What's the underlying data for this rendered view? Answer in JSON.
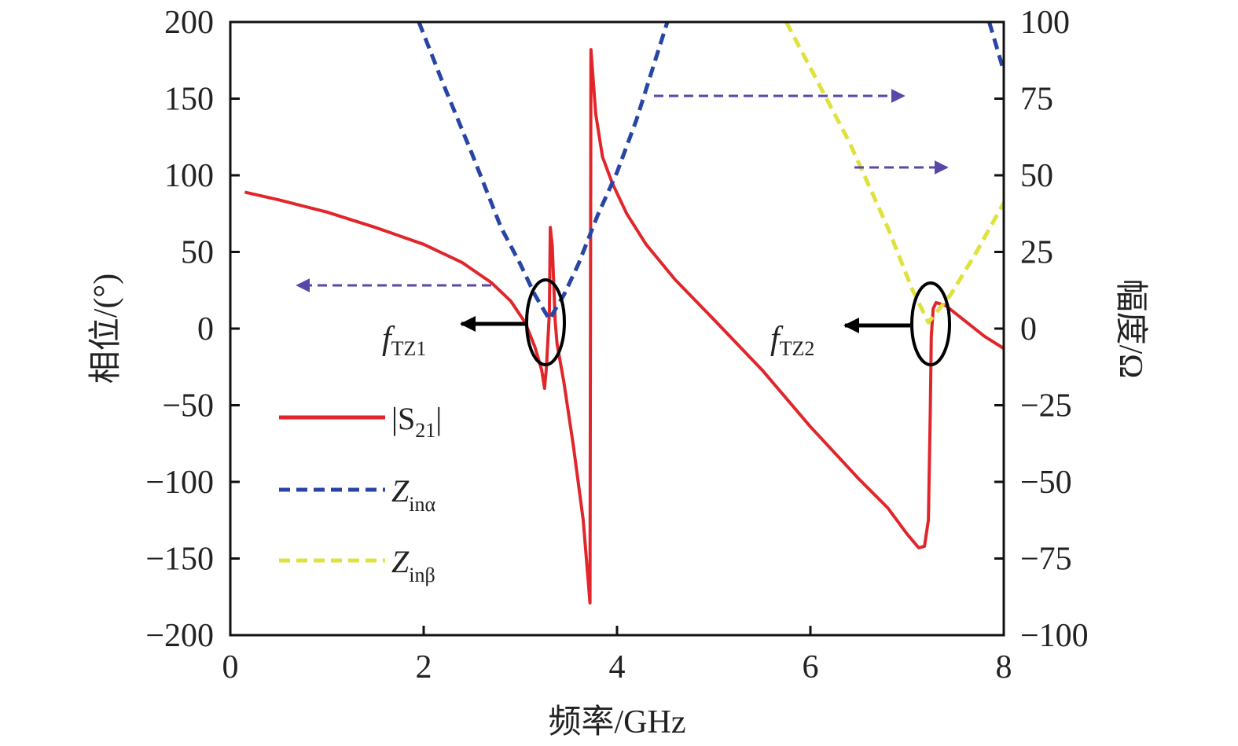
{
  "chart_data": {
    "type": "line",
    "xlabel": "频率/GHz",
    "ylabel_left": "相位/(°)",
    "ylabel_right": "幅度/Ω",
    "xlim": [
      0,
      8
    ],
    "ylim_left": [
      -200,
      200
    ],
    "ylim_right": [
      -100,
      100
    ],
    "x_ticks": [
      "0",
      "2",
      "4",
      "6",
      "8"
    ],
    "y_ticks_left": [
      "200",
      "150",
      "100",
      "50",
      "0",
      "−50",
      "−100",
      "−150",
      "−200"
    ],
    "y_ticks_right": [
      "100",
      "75",
      "50",
      "25",
      "0",
      "−25",
      "−50",
      "−75",
      "−100"
    ],
    "grid": false,
    "legend_position": "left",
    "series": [
      {
        "name": "|S21|",
        "axis": "left",
        "color": "#e0262b",
        "style": "solid",
        "points": [
          [
            0.15,
            89
          ],
          [
            0.5,
            84
          ],
          [
            1.0,
            76
          ],
          [
            1.5,
            66
          ],
          [
            2.0,
            55
          ],
          [
            2.4,
            43
          ],
          [
            2.7,
            30
          ],
          [
            2.9,
            18
          ],
          [
            3.05,
            4
          ],
          [
            3.15,
            -12
          ],
          [
            3.22,
            -27
          ],
          [
            3.25,
            -39
          ],
          [
            3.27,
            -25
          ],
          [
            3.3,
            10
          ],
          [
            3.31,
            66
          ],
          [
            3.33,
            54
          ],
          [
            3.36,
            5
          ],
          [
            3.38,
            -10
          ],
          [
            3.45,
            -35
          ],
          [
            3.55,
            -77
          ],
          [
            3.65,
            -125
          ],
          [
            3.72,
            -179
          ],
          [
            3.73,
            182
          ],
          [
            3.78,
            140
          ],
          [
            3.85,
            112
          ],
          [
            3.95,
            95
          ],
          [
            4.1,
            75
          ],
          [
            4.3,
            55
          ],
          [
            4.6,
            32
          ],
          [
            5.0,
            6
          ],
          [
            5.5,
            -27
          ],
          [
            6.0,
            -64
          ],
          [
            6.5,
            -98
          ],
          [
            6.8,
            -117
          ],
          [
            7.0,
            -134
          ],
          [
            7.12,
            -143
          ],
          [
            7.18,
            -142
          ],
          [
            7.22,
            -125
          ],
          [
            7.24,
            -55
          ],
          [
            7.25,
            -5
          ],
          [
            7.27,
            13
          ],
          [
            7.3,
            17
          ],
          [
            7.4,
            15
          ],
          [
            7.6,
            5
          ],
          [
            7.8,
            -5
          ],
          [
            8.0,
            -13
          ]
        ]
      },
      {
        "name": "Zinα",
        "axis": "right",
        "color": "#2845a5",
        "style": "dashed",
        "points": [
          [
            1.95,
            100
          ],
          [
            2.2,
            80
          ],
          [
            2.5,
            57
          ],
          [
            2.8,
            33
          ],
          [
            3.0,
            21
          ],
          [
            3.15,
            11
          ],
          [
            3.3,
            3
          ],
          [
            3.45,
            11
          ],
          [
            3.6,
            21
          ],
          [
            3.8,
            37
          ],
          [
            4.0,
            51
          ],
          [
            4.2,
            68
          ],
          [
            4.4,
            88
          ],
          [
            4.52,
            100
          ]
        ]
      },
      {
        "name": "Zinβ",
        "axis": "right",
        "color": "#dfe13c",
        "style": "dashed",
        "points": [
          [
            5.75,
            100
          ],
          [
            6.0,
            85
          ],
          [
            6.4,
            61
          ],
          [
            6.8,
            33
          ],
          [
            7.05,
            13
          ],
          [
            7.22,
            2
          ],
          [
            7.45,
            11
          ],
          [
            7.7,
            24
          ],
          [
            8.0,
            41
          ]
        ]
      },
      {
        "name": "Zinα",
        "axis": "right",
        "color": "#2845a5",
        "style": "dashed",
        "points": [
          [
            7.85,
            100
          ],
          [
            8.0,
            84
          ]
        ]
      }
    ],
    "legend": [
      {
        "label": "|S",
        "sub": "21",
        "suffix": "|",
        "color": "#e0262b",
        "style": "solid"
      },
      {
        "label": "Z",
        "sub": "inα",
        "suffix": "",
        "color": "#2845a5",
        "style": "dashed"
      },
      {
        "label": "Z",
        "sub": "inβ",
        "suffix": "",
        "color": "#dfe13c",
        "style": "dashed"
      }
    ],
    "annotations": [
      {
        "label": "f",
        "sub": "TZ1",
        "x": 3.3,
        "y": 5
      },
      {
        "label": "f",
        "sub": "TZ2",
        "x": 7.25,
        "y": 2
      }
    ]
  }
}
